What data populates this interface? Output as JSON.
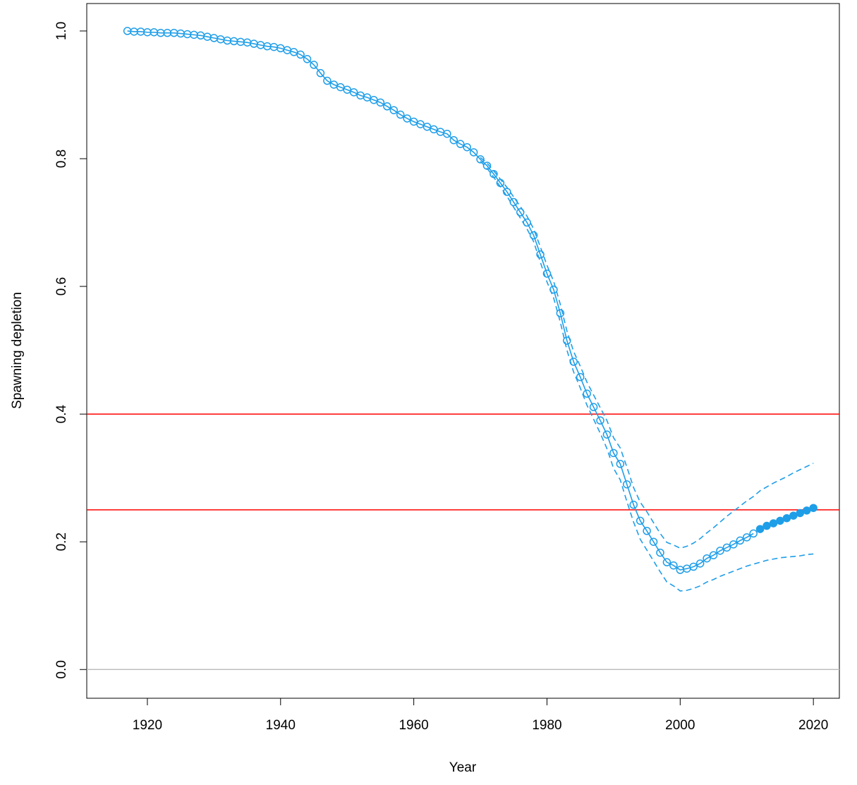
{
  "chart_data": {
    "type": "line",
    "xlabel": "Year",
    "ylabel": "Spawning depletion",
    "x": [
      1917,
      1918,
      1919,
      1920,
      1921,
      1922,
      1923,
      1924,
      1925,
      1926,
      1927,
      1928,
      1929,
      1930,
      1931,
      1932,
      1933,
      1934,
      1935,
      1936,
      1937,
      1938,
      1939,
      1940,
      1941,
      1942,
      1943,
      1944,
      1945,
      1946,
      1947,
      1948,
      1949,
      1950,
      1951,
      1952,
      1953,
      1954,
      1955,
      1956,
      1957,
      1958,
      1959,
      1960,
      1961,
      1962,
      1963,
      1964,
      1965,
      1966,
      1967,
      1968,
      1969,
      1970,
      1971,
      1972,
      1973,
      1974,
      1975,
      1976,
      1977,
      1978,
      1979,
      1980,
      1981,
      1982,
      1983,
      1984,
      1985,
      1986,
      1987,
      1988,
      1989,
      1990,
      1991,
      1992,
      1993,
      1994,
      1995,
      1996,
      1997,
      1998,
      1999,
      2000,
      2001,
      2002,
      2003,
      2004,
      2005,
      2006,
      2007,
      2008,
      2009,
      2010,
      2011,
      2012,
      2013,
      2014,
      2015,
      2016,
      2017,
      2018,
      2019,
      2020
    ],
    "series": [
      {
        "color": "#1f9ee8",
        "marker": "open",
        "dashed": false,
        "values": [
          1.0,
          0.999,
          0.999,
          0.998,
          0.998,
          0.997,
          0.997,
          0.997,
          0.996,
          0.995,
          0.994,
          0.993,
          0.991,
          0.989,
          0.987,
          0.985,
          0.984,
          0.983,
          0.982,
          0.98,
          0.978,
          0.976,
          0.975,
          0.973,
          0.97,
          0.967,
          0.963,
          0.956,
          0.947,
          0.934,
          0.922,
          0.916,
          0.912,
          0.908,
          0.904,
          0.899,
          0.896,
          0.892,
          0.888,
          0.882,
          0.876,
          0.869,
          0.863,
          0.858,
          0.854,
          0.85,
          0.846,
          0.842,
          0.839,
          0.829,
          0.823,
          0.818,
          0.81,
          0.799,
          0.789,
          0.776,
          0.762,
          0.748,
          0.732,
          0.716,
          0.7,
          0.68,
          0.65,
          0.62,
          0.595,
          0.558,
          0.515,
          0.482,
          0.458,
          0.432,
          0.411,
          0.39,
          0.368,
          0.339,
          0.322,
          0.29,
          0.258,
          0.233,
          0.217,
          0.2,
          0.183,
          0.168,
          0.163,
          0.156,
          0.158,
          0.161,
          0.166,
          0.174,
          0.179,
          0.186,
          0.191,
          0.196,
          0.202,
          0.207,
          0.213,
          null,
          null,
          null,
          null,
          null,
          null,
          null,
          null,
          null
        ]
      },
      {
        "color": "#1f9ee8",
        "marker": "filled",
        "dashed": false,
        "values": [
          null,
          null,
          null,
          null,
          null,
          null,
          null,
          null,
          null,
          null,
          null,
          null,
          null,
          null,
          null,
          null,
          null,
          null,
          null,
          null,
          null,
          null,
          null,
          null,
          null,
          null,
          null,
          null,
          null,
          null,
          null,
          null,
          null,
          null,
          null,
          null,
          null,
          null,
          null,
          null,
          null,
          null,
          null,
          null,
          null,
          null,
          null,
          null,
          null,
          null,
          null,
          null,
          null,
          null,
          null,
          null,
          null,
          null,
          null,
          null,
          null,
          null,
          null,
          null,
          null,
          null,
          null,
          null,
          null,
          null,
          null,
          null,
          null,
          null,
          null,
          null,
          null,
          null,
          null,
          null,
          null,
          null,
          null,
          null,
          null,
          null,
          null,
          null,
          null,
          null,
          null,
          null,
          null,
          null,
          null,
          0.22,
          0.225,
          0.229,
          0.233,
          0.237,
          0.241,
          0.245,
          0.249,
          0.253
        ]
      },
      {
        "color": "#1f9ee8",
        "marker": "none",
        "dashed": true,
        "values": [
          null,
          null,
          null,
          null,
          null,
          null,
          null,
          null,
          null,
          null,
          null,
          null,
          null,
          null,
          null,
          null,
          null,
          null,
          null,
          null,
          null,
          null,
          null,
          null,
          null,
          null,
          null,
          null,
          null,
          null,
          null,
          null,
          null,
          null,
          null,
          null,
          null,
          null,
          null,
          null,
          null,
          null,
          null,
          null,
          null,
          null,
          null,
          null,
          null,
          null,
          null,
          null,
          null,
          0.802,
          0.793,
          0.781,
          0.768,
          0.755,
          0.74,
          0.725,
          0.71,
          0.69,
          0.662,
          0.633,
          0.608,
          0.572,
          0.53,
          0.498,
          0.475,
          0.45,
          0.43,
          0.41,
          0.39,
          0.363,
          0.347,
          0.317,
          0.285,
          0.262,
          0.247,
          0.23,
          0.213,
          0.199,
          0.195,
          0.19,
          0.193,
          0.198,
          0.205,
          0.214,
          0.222,
          0.231,
          0.24,
          0.248,
          0.256,
          0.264,
          0.271,
          0.28,
          0.286,
          0.292,
          0.297,
          0.302,
          0.308,
          0.313,
          0.318,
          0.323
        ]
      },
      {
        "color": "#1f9ee8",
        "marker": "none",
        "dashed": true,
        "values": [
          null,
          null,
          null,
          null,
          null,
          null,
          null,
          null,
          null,
          null,
          null,
          null,
          null,
          null,
          null,
          null,
          null,
          null,
          null,
          null,
          null,
          null,
          null,
          null,
          null,
          null,
          null,
          null,
          null,
          null,
          null,
          null,
          null,
          null,
          null,
          null,
          null,
          null,
          null,
          null,
          null,
          null,
          null,
          null,
          null,
          null,
          null,
          null,
          null,
          null,
          null,
          null,
          null,
          0.796,
          0.785,
          0.771,
          0.756,
          0.741,
          0.724,
          0.707,
          0.69,
          0.67,
          0.638,
          0.607,
          0.582,
          0.544,
          0.5,
          0.466,
          0.441,
          0.414,
          0.392,
          0.37,
          0.346,
          0.315,
          0.297,
          0.263,
          0.231,
          0.204,
          0.187,
          0.17,
          0.153,
          0.137,
          0.131,
          0.123,
          0.124,
          0.127,
          0.131,
          0.137,
          0.141,
          0.146,
          0.15,
          0.154,
          0.158,
          0.162,
          0.165,
          0.168,
          0.171,
          0.173,
          0.175,
          0.176,
          0.177,
          0.178,
          0.18,
          0.181
        ]
      }
    ],
    "hlines": [
      {
        "value": 0.4,
        "color": "#ff0000"
      },
      {
        "value": 0.25,
        "color": "#ff0000"
      },
      {
        "value": 0,
        "color": "#bebebe"
      }
    ],
    "xlim": [
      1910.9,
      2023.9
    ],
    "ylim": [
      -0.045,
      1.043
    ],
    "xticks": [
      1920,
      1940,
      1960,
      1980,
      2000,
      2020
    ],
    "yticks": [
      {
        "value": 0,
        "label": "0.0"
      },
      0.2,
      0.4,
      0.6,
      0.8,
      {
        "value": 1,
        "label": "1.0"
      }
    ],
    "grid": false
  }
}
